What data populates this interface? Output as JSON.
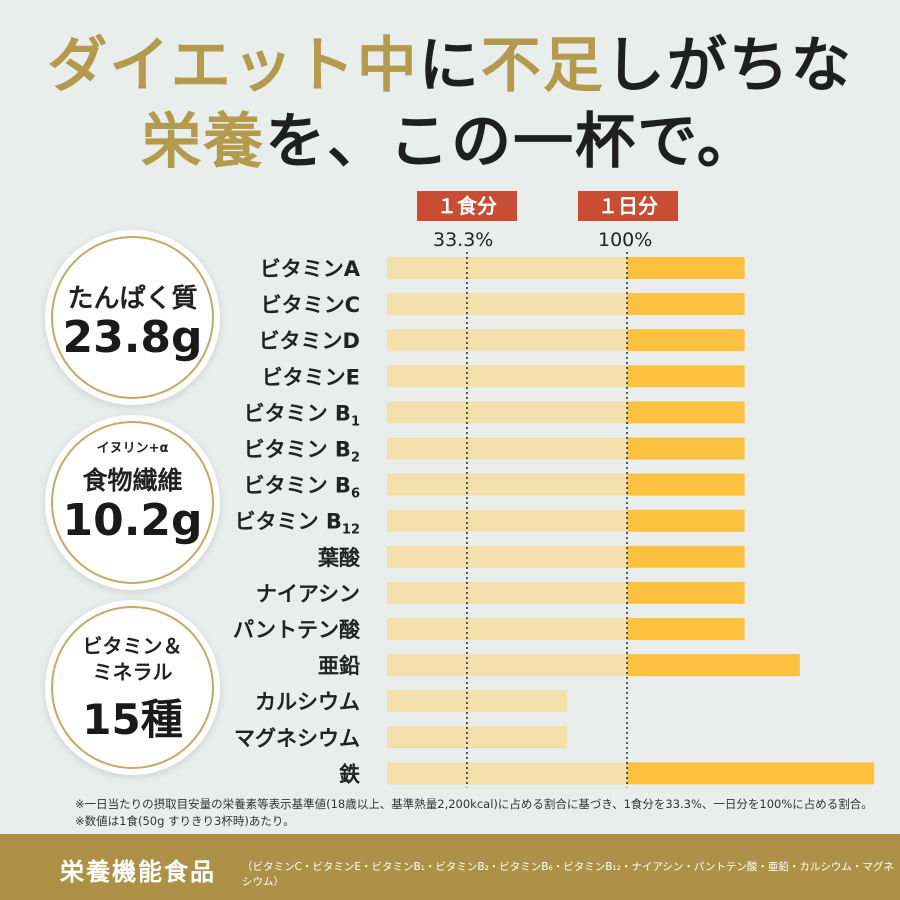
{
  "headline": {
    "line1": [
      {
        "text": "ダイエット中",
        "color": "#b39a4d"
      },
      {
        "text": "に",
        "color": "#1f1f1f"
      },
      {
        "text": "不足",
        "color": "#b39a4d"
      },
      {
        "text": "しがちな",
        "color": "#1f1f1f"
      }
    ],
    "line2": [
      {
        "text": "栄養",
        "color": "#b39a4d"
      },
      {
        "text": "を、この一杯で。",
        "color": "#1f1f1f"
      }
    ]
  },
  "tags": {
    "per_meal": "１食分",
    "per_day": "１日分",
    "per_meal_pct": "33.3%",
    "per_day_pct": "100%"
  },
  "circles": [
    {
      "label": "たんぱく質",
      "value": "23.8g"
    },
    {
      "sub": "イヌリン+α",
      "label": "食物繊維",
      "value": "10.2g"
    },
    {
      "label1": "ビタミン＆",
      "label2": "ミネラル",
      "value": "15種"
    }
  ],
  "chart_data": {
    "type": "bar",
    "orientation": "horizontal",
    "reference_lines": [
      33.3,
      100
    ],
    "categories": [
      {
        "base": "ビタミン",
        "letter": "A",
        "sub": ""
      },
      {
        "base": "ビタミン",
        "letter": "C",
        "sub": ""
      },
      {
        "base": "ビタミン",
        "letter": "D",
        "sub": ""
      },
      {
        "base": "ビタミン",
        "letter": "E",
        "sub": ""
      },
      {
        "base": "ビタミン",
        "letter": "B",
        "sub": "1"
      },
      {
        "base": "ビタミン",
        "letter": "B",
        "sub": "2"
      },
      {
        "base": "ビタミン",
        "letter": "B",
        "sub": "6"
      },
      {
        "base": "ビタミン",
        "letter": "B",
        "sub": "12"
      },
      {
        "base": "葉酸",
        "letter": "",
        "sub": ""
      },
      {
        "base": "ナイアシン",
        "letter": "",
        "sub": ""
      },
      {
        "base": "パントテン酸",
        "letter": "",
        "sub": ""
      },
      {
        "base": "亜鉛",
        "letter": "",
        "sub": ""
      },
      {
        "base": "カルシウム",
        "letter": "",
        "sub": ""
      },
      {
        "base": "マグネシウム",
        "letter": "",
        "sub": ""
      },
      {
        "base": "鉄",
        "letter": "",
        "sub": ""
      }
    ],
    "values": [
      149,
      149,
      149,
      149,
      149,
      149,
      149,
      149,
      149,
      149,
      149,
      172,
      75,
      75,
      203
    ],
    "xlim": [
      0,
      203
    ],
    "colors": {
      "below_ref": "#f3e0ad",
      "above_ref": "#fcc13e",
      "ref_line": "#222222"
    }
  },
  "notes": [
    "※一日当たりの摂取目安量の栄養素等表示基準値(18歳以上、基準熱量2,200kcal)に占める割合に基づき、1食分を33.3%、一日分を100%に占める割合。",
    "※数値は1食(50g すりきり3杯時)あたり。"
  ],
  "footer": {
    "title": "栄養機能食品",
    "list": "（ビタミンC・ビタミンE・ビタミンB₁・ビタミンB₂・ビタミンB₆・ビタミンB₁₂・ナイアシン・パントテン酸・亜鉛・カルシウム・マグネシウム）"
  }
}
